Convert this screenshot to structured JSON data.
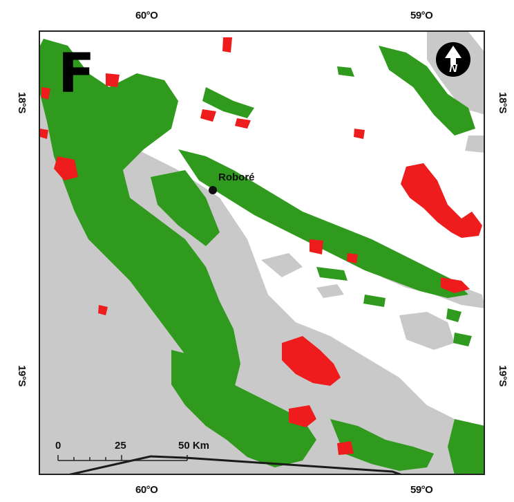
{
  "map": {
    "panel_label": "F",
    "city": {
      "name": "Roboré"
    },
    "graticule": {
      "top": [
        "60°O",
        "59°O"
      ],
      "bottom": [
        "60°O",
        "59°O"
      ],
      "left": [
        "18°S",
        "19°S"
      ],
      "right": [
        "18°S",
        "19°S"
      ]
    },
    "scalebar": {
      "labels": [
        "0",
        "25",
        "50 Km"
      ]
    },
    "north_arrow": {
      "icon": "north-arrow-icon",
      "letter": "N"
    },
    "colors": {
      "class_green": "#2f9a1e",
      "class_gray": "#c9c9c9",
      "class_red": "#ee1c1c",
      "background": "#ffffff"
    }
  }
}
